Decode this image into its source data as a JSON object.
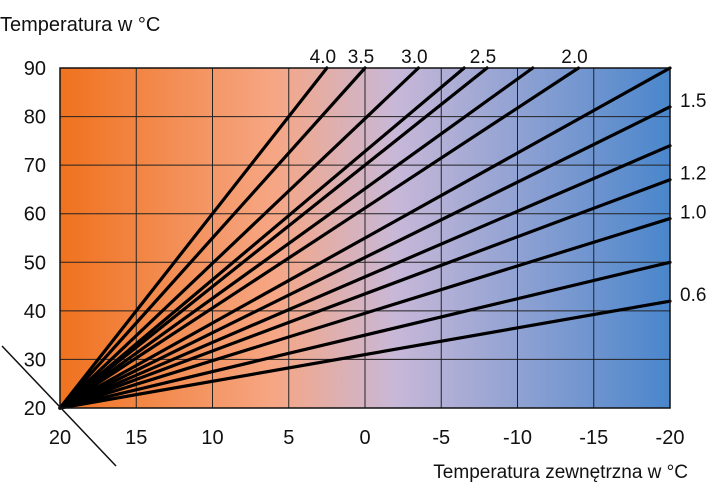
{
  "chart_data": {
    "type": "line",
    "title": "",
    "ylabel": "Temperatura w °C",
    "xlabel": "Temperatura zewnętrzna w °C",
    "xlim": [
      20,
      -20
    ],
    "ylim": [
      20,
      90
    ],
    "x_ticks": [
      "20",
      "15",
      "10",
      "5",
      "0",
      "-5",
      "-10",
      "-15",
      "-20"
    ],
    "y_ticks": [
      "20",
      "30",
      "40",
      "50",
      "60",
      "70",
      "80",
      "90"
    ],
    "grid": true,
    "background_gradient": [
      "#f0721e",
      "#f6a684",
      "#c8b8d8",
      "#4a86cc"
    ],
    "line_color": "#000000",
    "top_labels": [
      {
        "text": "4.0",
        "value": 4.0
      },
      {
        "text": "3.5",
        "value": 3.5
      },
      {
        "text": "3.0",
        "value": 3.0
      },
      {
        "text": "2.5",
        "value": 2.5
      },
      {
        "text": "2.0",
        "value": 2.0
      }
    ],
    "right_labels": [
      {
        "text": "1.5",
        "value": 1.5
      },
      {
        "text": "1.2",
        "value": 1.2
      },
      {
        "text": "1.0",
        "value": 1.0
      },
      {
        "text": "0.6",
        "value": 0.6
      }
    ],
    "series": [
      {
        "value": 4.0,
        "x": [
          20,
          2.5
        ],
        "y": [
          20,
          90
        ]
      },
      {
        "value": 3.5,
        "x": [
          20,
          0
        ],
        "y": [
          20,
          90
        ]
      },
      {
        "value": 3.0,
        "x": [
          20,
          -3.5
        ],
        "y": [
          20,
          90
        ]
      },
      {
        "value": 2.7,
        "x": [
          20,
          -6.5
        ],
        "y": [
          20,
          90
        ]
      },
      {
        "value": 2.5,
        "x": [
          20,
          -8
        ],
        "y": [
          20,
          90
        ]
      },
      {
        "value": 2.2,
        "x": [
          20,
          -11
        ],
        "y": [
          20,
          90
        ]
      },
      {
        "value": 2.0,
        "x": [
          20,
          -14
        ],
        "y": [
          20,
          90
        ]
      },
      {
        "value": 1.8,
        "x": [
          20,
          -20
        ],
        "y": [
          20,
          90
        ]
      },
      {
        "value": 1.5,
        "x": [
          20,
          -20
        ],
        "y": [
          20,
          82
        ]
      },
      {
        "value": 1.35,
        "x": [
          20,
          -20
        ],
        "y": [
          20,
          74
        ]
      },
      {
        "value": 1.2,
        "x": [
          20,
          -20
        ],
        "y": [
          20,
          67
        ]
      },
      {
        "value": 1.0,
        "x": [
          20,
          -20
        ],
        "y": [
          20,
          59
        ]
      },
      {
        "value": 0.8,
        "x": [
          20,
          -20
        ],
        "y": [
          20,
          50
        ]
      },
      {
        "value": 0.6,
        "x": [
          20,
          -20
        ],
        "y": [
          20,
          42
        ]
      }
    ]
  }
}
